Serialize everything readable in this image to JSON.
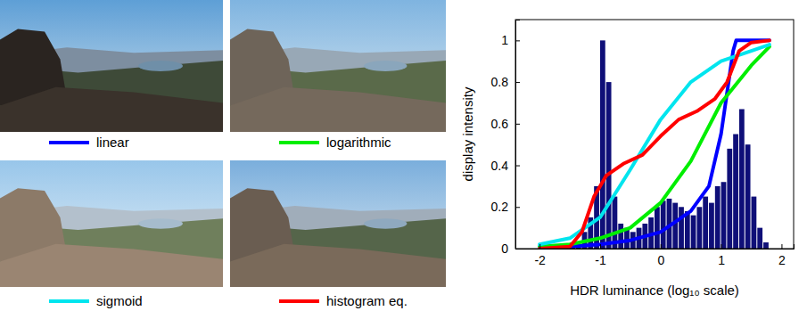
{
  "chart_data": {
    "type": "line",
    "xlabel": "HDR luminance (log₁₀ scale)",
    "ylabel": "display intensity",
    "xlim": [
      -2.4,
      2.2
    ],
    "ylim": [
      0,
      1.1
    ],
    "xticks": [
      -2,
      -1,
      0,
      1,
      2
    ],
    "yticks": [
      0,
      0.2,
      0.4,
      0.6,
      0.8,
      1
    ],
    "grid": false,
    "histogram": {
      "color": "#0f0f78",
      "bins": [
        -1.5,
        -1.4,
        -1.3,
        -1.2,
        -1.1,
        -1.0,
        -0.9,
        -0.8,
        -0.7,
        -0.6,
        -0.5,
        -0.4,
        -0.3,
        -0.2,
        -0.1,
        0.0,
        0.1,
        0.2,
        0.3,
        0.4,
        0.5,
        0.6,
        0.7,
        0.8,
        0.9,
        1.0,
        1.1,
        1.2,
        1.3,
        1.4,
        1.5,
        1.6,
        1.7,
        1.8
      ],
      "values": [
        0.01,
        0.02,
        0.08,
        0.15,
        0.3,
        1.0,
        0.8,
        0.25,
        0.12,
        0.1,
        0.08,
        0.1,
        0.12,
        0.15,
        0.2,
        0.23,
        0.24,
        0.22,
        0.2,
        0.18,
        0.16,
        0.2,
        0.25,
        0.22,
        0.3,
        0.32,
        0.48,
        0.55,
        0.67,
        0.5,
        0.25,
        0.1,
        0.03
      ]
    },
    "series": [
      {
        "name": "linear",
        "color": "#0000ff",
        "x": [
          -2,
          -1.5,
          -1,
          -0.5,
          0,
          0.5,
          0.8,
          1,
          1.1,
          1.2,
          1.25,
          1.3,
          1.5,
          1.8
        ],
        "values": [
          0.01,
          0.01,
          0.02,
          0.04,
          0.08,
          0.18,
          0.3,
          0.55,
          0.75,
          0.95,
          1,
          1,
          1,
          1
        ]
      },
      {
        "name": "logarithmic",
        "color": "#00ee00",
        "x": [
          -2,
          -1.5,
          -1,
          -0.5,
          0,
          0.5,
          1,
          1.5,
          1.8
        ],
        "values": [
          0.01,
          0.02,
          0.05,
          0.1,
          0.22,
          0.42,
          0.7,
          0.88,
          0.97
        ]
      },
      {
        "name": "sigmoid",
        "color": "#00e5ee",
        "x": [
          -2,
          -1.5,
          -1,
          -0.5,
          0,
          0.5,
          1,
          1.5,
          1.8
        ],
        "values": [
          0.02,
          0.05,
          0.15,
          0.38,
          0.62,
          0.8,
          0.9,
          0.95,
          0.98
        ]
      },
      {
        "name": "histogram eq.",
        "color": "#ff0000",
        "x": [
          -2,
          -1.5,
          -1.3,
          -1.1,
          -1,
          -0.9,
          -0.6,
          -0.3,
          0,
          0.3,
          0.6,
          0.9,
          1.1,
          1.3,
          1.5,
          1.8
        ],
        "values": [
          0,
          0.01,
          0.08,
          0.25,
          0.3,
          0.35,
          0.41,
          0.45,
          0.54,
          0.62,
          0.66,
          0.72,
          0.8,
          0.95,
          0.99,
          1
        ]
      }
    ]
  }
}
